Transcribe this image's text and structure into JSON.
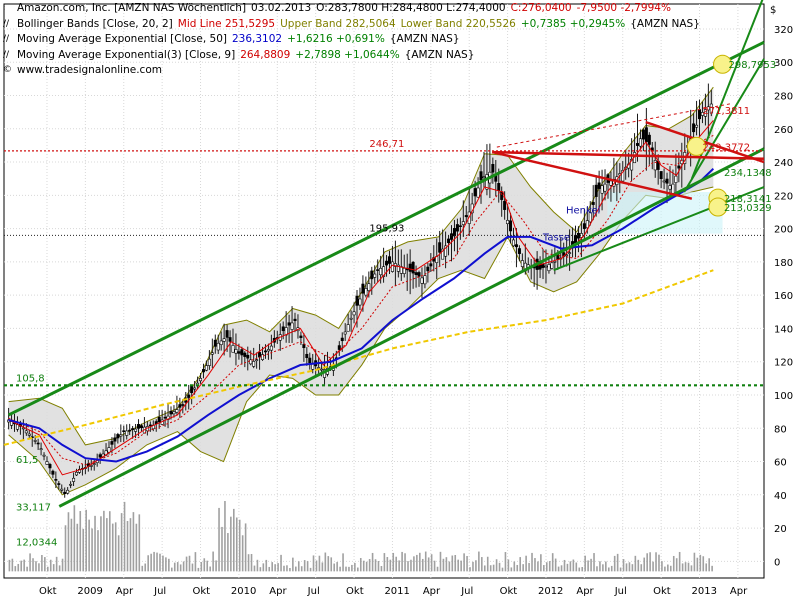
{
  "legend": {
    "line1": {
      "name": "Amazon.com, Inc. [AMZN NAS  Wöchentlich]",
      "date": "03.02.2013",
      "ohl": "O:283,7800 H:284,4800 L:274,4000",
      "close": "C:276,0400",
      "chg": "-7,9500 -2,7994%"
    },
    "line2": {
      "name": "Bollinger Bands [Close, 20, 2]",
      "mid": "Mid Line 251,5295",
      "upper": "Upper Band 282,5064",
      "lower": "Lower Band 220,5526",
      "chg": "+0,7385 +0,2945%",
      "tag": "{AMZN NAS}"
    },
    "line3": {
      "name": "Moving Average Exponential [Close, 50]",
      "val": "236,3102",
      "chg": "+1,6216 +0,691%",
      "tag": "{AMZN NAS}"
    },
    "line4": {
      "name": "Moving Average Exponential(3) [Close, 9]",
      "val": "264,8809",
      "chg": "+2,7898 +1,0644%",
      "tag": "{AMZN NAS}"
    },
    "line5": {
      "text": "www.tradesignalonline.com"
    }
  },
  "chart_data": {
    "type": "line",
    "title": "Amazon.com, Inc. [AMZN NAS  Wöchentlich]",
    "currency": "$",
    "y_ticks": [
      0,
      20,
      40,
      60,
      80,
      100,
      120,
      140,
      160,
      180,
      200,
      220,
      240,
      260,
      280,
      300,
      320
    ],
    "ylim": [
      -10,
      335
    ],
    "x_ticks": [
      {
        "label": "Okt",
        "x": 2008.75
      },
      {
        "label": "2009",
        "x": 2009.0
      },
      {
        "label": "Apr",
        "x": 2009.25
      },
      {
        "label": "Jul",
        "x": 2009.5
      },
      {
        "label": "Okt",
        "x": 2009.75
      },
      {
        "label": "2010",
        "x": 2010.0
      },
      {
        "label": "Apr",
        "x": 2010.25
      },
      {
        "label": "Jul",
        "x": 2010.5
      },
      {
        "label": "Okt",
        "x": 2010.75
      },
      {
        "label": "2011",
        "x": 2011.0
      },
      {
        "label": "Apr",
        "x": 2011.25
      },
      {
        "label": "Jul",
        "x": 2011.5
      },
      {
        "label": "Okt",
        "x": 2011.75
      },
      {
        "label": "2012",
        "x": 2012.0
      },
      {
        "label": "Apr",
        "x": 2012.25
      },
      {
        "label": "Jul",
        "x": 2012.5
      },
      {
        "label": "Okt",
        "x": 2012.75
      },
      {
        "label": "2013",
        "x": 2013.0
      },
      {
        "label": "Apr",
        "x": 2013.25
      }
    ],
    "xlim": [
      2008.47,
      2013.42
    ],
    "series": [
      {
        "name": "Close",
        "values": [
          [
            2008.5,
            85
          ],
          [
            2008.6,
            80
          ],
          [
            2008.7,
            70
          ],
          [
            2008.8,
            50
          ],
          [
            2008.87,
            40
          ],
          [
            2008.95,
            55
          ],
          [
            2009.05,
            58
          ],
          [
            2009.15,
            68
          ],
          [
            2009.25,
            78
          ],
          [
            2009.35,
            80
          ],
          [
            2009.45,
            82
          ],
          [
            2009.55,
            88
          ],
          [
            2009.65,
            95
          ],
          [
            2009.75,
            110
          ],
          [
            2009.85,
            130
          ],
          [
            2009.92,
            135
          ],
          [
            2010.0,
            125
          ],
          [
            2010.1,
            120
          ],
          [
            2010.2,
            128
          ],
          [
            2010.3,
            140
          ],
          [
            2010.37,
            145
          ],
          [
            2010.45,
            120
          ],
          [
            2010.55,
            115
          ],
          [
            2010.62,
            118
          ],
          [
            2010.7,
            140
          ],
          [
            2010.8,
            160
          ],
          [
            2010.9,
            175
          ],
          [
            2011.0,
            180
          ],
          [
            2011.1,
            175
          ],
          [
            2011.2,
            170
          ],
          [
            2011.3,
            185
          ],
          [
            2011.4,
            195
          ],
          [
            2011.5,
            210
          ],
          [
            2011.58,
            230
          ],
          [
            2011.65,
            235
          ],
          [
            2011.72,
            215
          ],
          [
            2011.78,
            195
          ],
          [
            2011.85,
            180
          ],
          [
            2011.95,
            175
          ],
          [
            2012.05,
            180
          ],
          [
            2012.15,
            185
          ],
          [
            2012.25,
            200
          ],
          [
            2012.35,
            225
          ],
          [
            2012.45,
            230
          ],
          [
            2012.55,
            240
          ],
          [
            2012.62,
            255
          ],
          [
            2012.68,
            250
          ],
          [
            2012.75,
            230
          ],
          [
            2012.82,
            225
          ],
          [
            2012.9,
            245
          ],
          [
            2012.97,
            260
          ],
          [
            2013.02,
            270
          ],
          [
            2013.09,
            276
          ]
        ]
      },
      {
        "name": "Mid Line",
        "values": [
          [
            2008.5,
            86
          ],
          [
            2008.7,
            78
          ],
          [
            2008.85,
            62
          ],
          [
            2009.0,
            58
          ],
          [
            2009.2,
            65
          ],
          [
            2009.4,
            78
          ],
          [
            2009.6,
            85
          ],
          [
            2009.8,
            100
          ],
          [
            2010.0,
            118
          ],
          [
            2010.2,
            125
          ],
          [
            2010.4,
            132
          ],
          [
            2010.6,
            122
          ],
          [
            2010.8,
            140
          ],
          [
            2011.0,
            165
          ],
          [
            2011.2,
            172
          ],
          [
            2011.4,
            182
          ],
          [
            2011.55,
            205
          ],
          [
            2011.7,
            222
          ],
          [
            2011.85,
            205
          ],
          [
            2012.0,
            185
          ],
          [
            2012.2,
            182
          ],
          [
            2012.4,
            205
          ],
          [
            2012.55,
            228
          ],
          [
            2012.7,
            240
          ],
          [
            2012.85,
            238
          ],
          [
            2013.0,
            252
          ],
          [
            2013.09,
            256
          ]
        ]
      },
      {
        "name": "Upper Band",
        "values": [
          [
            2008.5,
            96
          ],
          [
            2008.7,
            98
          ],
          [
            2008.85,
            92
          ],
          [
            2009.0,
            70
          ],
          [
            2009.2,
            74
          ],
          [
            2009.4,
            84
          ],
          [
            2009.6,
            92
          ],
          [
            2009.75,
            112
          ],
          [
            2009.9,
            142
          ],
          [
            2010.05,
            145
          ],
          [
            2010.2,
            138
          ],
          [
            2010.35,
            152
          ],
          [
            2010.5,
            148
          ],
          [
            2010.65,
            140
          ],
          [
            2010.8,
            162
          ],
          [
            2010.95,
            186
          ],
          [
            2011.1,
            192
          ],
          [
            2011.3,
            195
          ],
          [
            2011.45,
            212
          ],
          [
            2011.6,
            245
          ],
          [
            2011.75,
            244
          ],
          [
            2011.9,
            225
          ],
          [
            2012.05,
            210
          ],
          [
            2012.2,
            198
          ],
          [
            2012.35,
            225
          ],
          [
            2012.5,
            245
          ],
          [
            2012.65,
            262
          ],
          [
            2012.8,
            260
          ],
          [
            2012.95,
            268
          ],
          [
            2013.09,
            285
          ]
        ]
      },
      {
        "name": "Lower Band",
        "values": [
          [
            2008.5,
            76
          ],
          [
            2008.7,
            60
          ],
          [
            2008.85,
            40
          ],
          [
            2009.0,
            46
          ],
          [
            2009.2,
            56
          ],
          [
            2009.4,
            70
          ],
          [
            2009.6,
            78
          ],
          [
            2009.75,
            66
          ],
          [
            2009.9,
            60
          ],
          [
            2010.05,
            96
          ],
          [
            2010.2,
            112
          ],
          [
            2010.35,
            110
          ],
          [
            2010.5,
            100
          ],
          [
            2010.65,
            100
          ],
          [
            2010.8,
            118
          ],
          [
            2010.95,
            140
          ],
          [
            2011.1,
            152
          ],
          [
            2011.3,
            170
          ],
          [
            2011.45,
            175
          ],
          [
            2011.6,
            170
          ],
          [
            2011.75,
            195
          ],
          [
            2011.9,
            168
          ],
          [
            2012.05,
            162
          ],
          [
            2012.2,
            168
          ],
          [
            2012.35,
            185
          ],
          [
            2012.5,
            205
          ],
          [
            2012.65,
            220
          ],
          [
            2012.8,
            218
          ],
          [
            2012.95,
            222
          ],
          [
            2013.09,
            225
          ]
        ]
      },
      {
        "name": "EMA 50",
        "values": [
          [
            2008.5,
            85
          ],
          [
            2008.7,
            80
          ],
          [
            2008.85,
            70
          ],
          [
            2009.0,
            62
          ],
          [
            2009.2,
            60
          ],
          [
            2009.4,
            66
          ],
          [
            2009.6,
            75
          ],
          [
            2009.8,
            88
          ],
          [
            2010.0,
            100
          ],
          [
            2010.2,
            110
          ],
          [
            2010.4,
            118
          ],
          [
            2010.6,
            120
          ],
          [
            2010.8,
            128
          ],
          [
            2011.0,
            145
          ],
          [
            2011.2,
            158
          ],
          [
            2011.4,
            170
          ],
          [
            2011.6,
            185
          ],
          [
            2011.75,
            195
          ],
          [
            2011.9,
            195
          ],
          [
            2012.1,
            188
          ],
          [
            2012.3,
            190
          ],
          [
            2012.5,
            200
          ],
          [
            2012.7,
            212
          ],
          [
            2012.85,
            220
          ],
          [
            2013.0,
            228
          ],
          [
            2013.09,
            236
          ]
        ]
      },
      {
        "name": "EMA 9",
        "values": [
          [
            2008.5,
            85
          ],
          [
            2008.7,
            76
          ],
          [
            2008.85,
            52
          ],
          [
            2009.0,
            56
          ],
          [
            2009.2,
            68
          ],
          [
            2009.4,
            80
          ],
          [
            2009.6,
            88
          ],
          [
            2009.8,
            112
          ],
          [
            2009.95,
            132
          ],
          [
            2010.1,
            124
          ],
          [
            2010.25,
            134
          ],
          [
            2010.4,
            140
          ],
          [
            2010.55,
            118
          ],
          [
            2010.7,
            130
          ],
          [
            2010.85,
            162
          ],
          [
            2011.0,
            178
          ],
          [
            2011.15,
            175
          ],
          [
            2011.3,
            184
          ],
          [
            2011.45,
            198
          ],
          [
            2011.6,
            225
          ],
          [
            2011.72,
            222
          ],
          [
            2011.82,
            195
          ],
          [
            2011.95,
            178
          ],
          [
            2012.1,
            182
          ],
          [
            2012.25,
            196
          ],
          [
            2012.4,
            222
          ],
          [
            2012.55,
            240
          ],
          [
            2012.65,
            252
          ],
          [
            2012.75,
            238
          ],
          [
            2012.85,
            232
          ],
          [
            2012.97,
            252
          ],
          [
            2013.09,
            265
          ]
        ]
      },
      {
        "name": "Trend (yellow dashed)",
        "values": [
          [
            2008.47,
            70
          ],
          [
            2009.0,
            82
          ],
          [
            2009.5,
            94
          ],
          [
            2010.0,
            105
          ],
          [
            2010.5,
            115
          ],
          [
            2011.0,
            128
          ],
          [
            2011.5,
            138
          ],
          [
            2012.0,
            145
          ],
          [
            2012.5,
            155
          ],
          [
            2013.0,
            172
          ],
          [
            2013.09,
            175
          ]
        ]
      }
    ],
    "levels": [
      {
        "label": "246,71",
        "y": 246.71,
        "style": "red-dotted"
      },
      {
        "label": "195,93",
        "y": 195.93,
        "style": "black-dotted"
      },
      {
        "label": "105,8",
        "y": 105.8,
        "style": "green-dotted"
      },
      {
        "label": "61,5",
        "y": 61.5
      },
      {
        "label": "33,117",
        "y": 33.117
      },
      {
        "label": "12,0344",
        "y": 12.0344
      }
    ],
    "right_labels": [
      {
        "label": "298,7953",
        "y": 298.8
      },
      {
        "label": "271,3811",
        "y": 271.4
      },
      {
        "label": "249,3772",
        "y": 249.4
      },
      {
        "label": "234,1348",
        "y": 234.1
      },
      {
        "label": "218,3141",
        "y": 218.3
      },
      {
        "label": "213,0329",
        "y": 213.0
      }
    ],
    "annotations": [
      {
        "text": "Henkel",
        "x": 2012.13,
        "y": 209
      },
      {
        "text": "Tasse",
        "x": 2011.98,
        "y": 193
      }
    ]
  }
}
